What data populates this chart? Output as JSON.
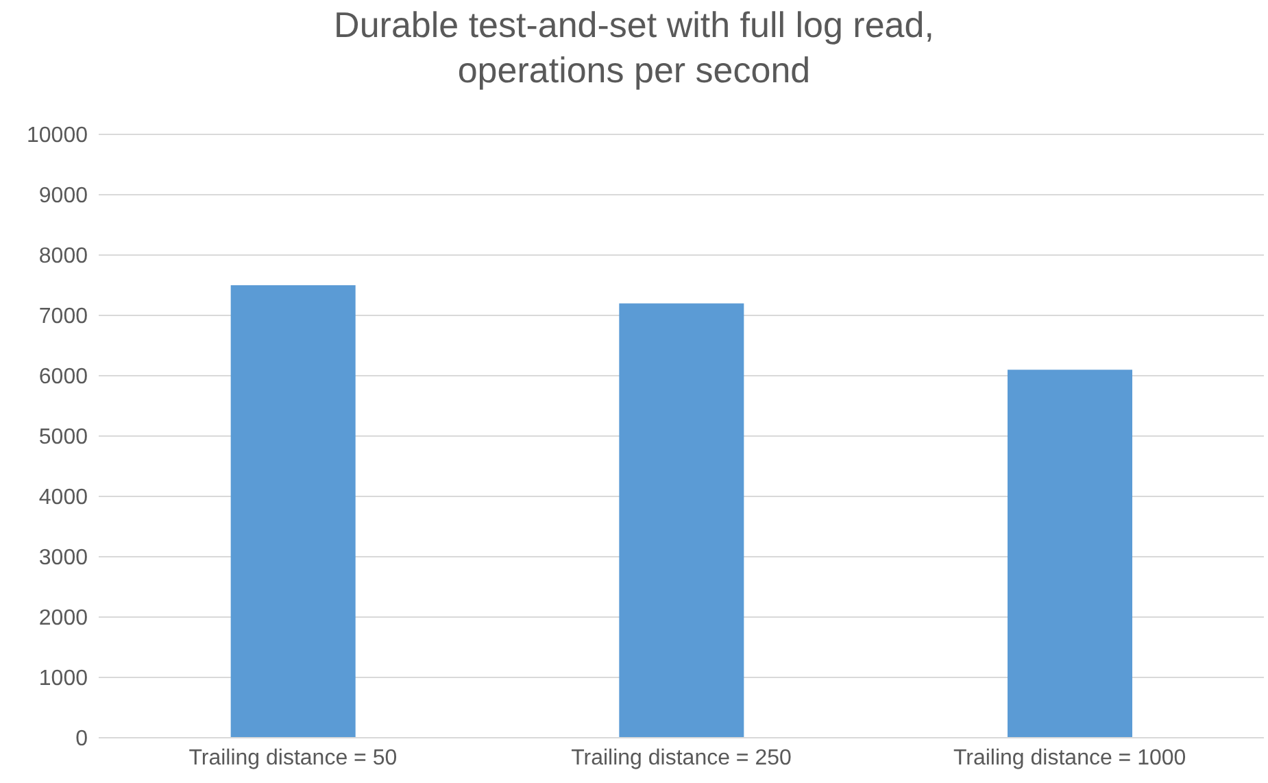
{
  "chart_data": {
    "type": "bar",
    "title": "Durable test-and-set with full log read, operations per second",
    "categories": [
      "Trailing distance = 50",
      "Trailing distance = 250",
      "Trailing distance = 1000"
    ],
    "values": [
      7500,
      7200,
      6100
    ],
    "color": "#5b9bd5",
    "ylim": [
      0,
      10000
    ],
    "yticks": [
      0,
      1000,
      2000,
      3000,
      4000,
      5000,
      6000,
      7000,
      8000,
      9000,
      10000
    ],
    "grid": "y",
    "legend": false
  }
}
